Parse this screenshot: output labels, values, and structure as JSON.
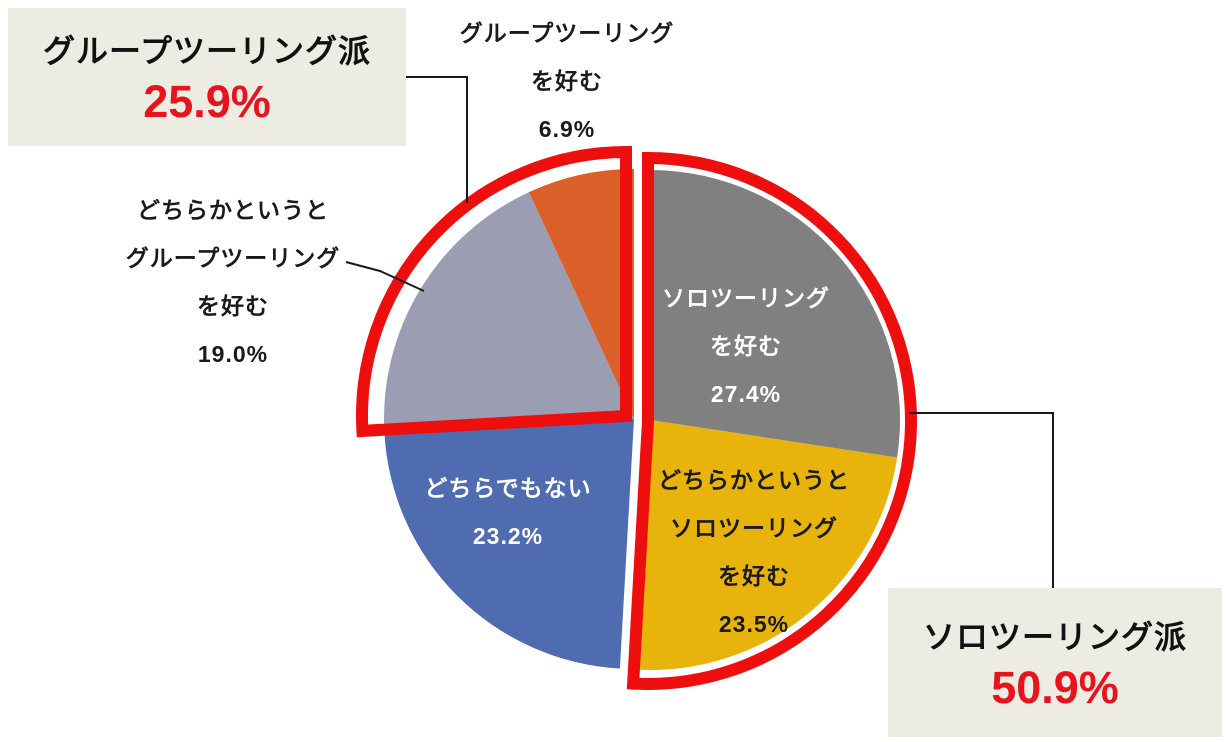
{
  "chart_data": {
    "type": "pie",
    "title": "",
    "legend": "none",
    "units": "%",
    "start_angle_deg": 0,
    "direction": "clockwise",
    "segments": [
      {
        "id": "solo",
        "label": "ソロツーリングを好む",
        "value": 27.4,
        "display": "ソロツーリング\nを好む\n27.4%",
        "color": "#808080",
        "text_color": "#FFFFFF",
        "exploded": true,
        "outlined": "solo"
      },
      {
        "id": "lean-solo",
        "label": "どちらかというとソロツーリングを好む",
        "value": 23.5,
        "display": "どちらかというと\nソロツーリング\nを好む\n23.5%",
        "color": "#E8B30A",
        "text_color": "#1A1A1A",
        "exploded": true,
        "outlined": "solo"
      },
      {
        "id": "neutral",
        "label": "どちらでもない",
        "value": 23.2,
        "display": "どちらでもない\n23.2%",
        "color": "#4F6CB0",
        "text_color": "#FFFFFF",
        "exploded": false,
        "outlined": null
      },
      {
        "id": "lean-group",
        "label": "どちらかというとグループツーリングを好む",
        "value": 19.0,
        "display": "どちらかというと\nグループツーリング\nを好む\n19.0%",
        "color": "#9B9DB2",
        "text_color": "#1A1A1A",
        "exploded": false,
        "outlined": "group"
      },
      {
        "id": "group",
        "label": "グループツーリングを好む",
        "value": 6.9,
        "display": "グループツーリング\nを好む\n6.9%",
        "color": "#DA5F28",
        "text_color": "#1A1A1A",
        "exploded": false,
        "outlined": "group"
      }
    ],
    "highlights": [
      {
        "id": "solo-total",
        "label": "ソロツーリング派",
        "value": 50.9,
        "display_value": "50.9%",
        "covers": [
          "solo",
          "lean-solo"
        ]
      },
      {
        "id": "group-total",
        "label": "グループツーリング派",
        "value": 25.9,
        "display_value": "25.9%",
        "covers": [
          "lean-group",
          "group"
        ]
      }
    ],
    "colors": {
      "highlight_outline": "#EE0E0E",
      "percent_text": "#E8131D",
      "callout_bg": "#EDECE3",
      "leader_line": "#1A1A1A",
      "background": "#FFFFFF"
    }
  }
}
